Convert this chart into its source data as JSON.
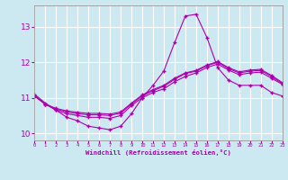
{
  "xlabel": "Windchill (Refroidissement éolien,°C)",
  "ylabel": "",
  "background_color": "#cce8f0",
  "grid_color": "#ffffff",
  "line_color": "#aa00aa",
  "xlim": [
    0,
    23
  ],
  "ylim": [
    9.8,
    13.6
  ],
  "hours": [
    0,
    1,
    2,
    3,
    4,
    5,
    6,
    7,
    8,
    9,
    10,
    11,
    12,
    13,
    14,
    15,
    16,
    17,
    18,
    19,
    20,
    21,
    22,
    23
  ],
  "line1": [
    11.1,
    10.85,
    10.65,
    10.45,
    10.35,
    10.2,
    10.15,
    10.1,
    10.2,
    10.55,
    11.0,
    11.35,
    11.75,
    12.55,
    13.3,
    13.35,
    12.7,
    11.85,
    11.5,
    11.35,
    11.35,
    11.35,
    11.15,
    11.05
  ],
  "line2": [
    11.05,
    10.82,
    10.65,
    10.55,
    10.5,
    10.45,
    10.45,
    10.42,
    10.5,
    10.78,
    11.0,
    11.15,
    11.25,
    11.45,
    11.6,
    11.7,
    11.85,
    11.95,
    11.78,
    11.65,
    11.7,
    11.72,
    11.55,
    11.38
  ],
  "line3": [
    11.05,
    10.82,
    10.68,
    10.6,
    10.55,
    10.52,
    10.52,
    10.5,
    10.57,
    10.82,
    11.05,
    11.2,
    11.32,
    11.52,
    11.68,
    11.75,
    11.9,
    12.0,
    11.82,
    11.7,
    11.75,
    11.77,
    11.6,
    11.4
  ],
  "line4": [
    11.05,
    10.82,
    10.7,
    10.63,
    10.59,
    10.56,
    10.56,
    10.54,
    10.6,
    10.85,
    11.08,
    11.23,
    11.35,
    11.55,
    11.7,
    11.77,
    11.92,
    12.02,
    11.85,
    11.73,
    11.78,
    11.8,
    11.63,
    11.43
  ]
}
